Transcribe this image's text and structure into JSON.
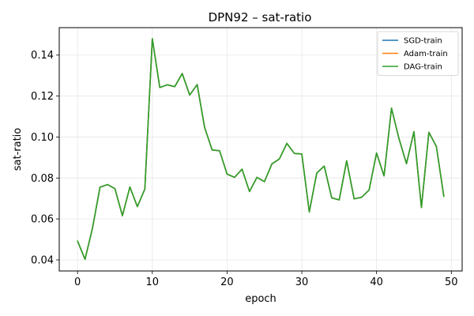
{
  "chart_data": {
    "type": "line",
    "title": "DPN92 – sat-ratio",
    "xlabel": "epoch",
    "ylabel": "sat-ratio",
    "xlim": [
      -2.45,
      51.45
    ],
    "ylim": [
      0.0346,
      0.1534
    ],
    "xticks": [
      0,
      10,
      20,
      30,
      40,
      50
    ],
    "yticks": [
      0.04,
      0.06,
      0.08,
      0.1,
      0.12,
      0.14
    ],
    "xtick_labels": [
      "0",
      "10",
      "20",
      "30",
      "40",
      "50"
    ],
    "ytick_labels": [
      "0.04",
      "0.06",
      "0.08",
      "0.10",
      "0.12",
      "0.14"
    ],
    "grid": true,
    "legend_position": "top-right",
    "x": [
      0,
      1,
      2,
      3,
      4,
      5,
      6,
      7,
      8,
      9,
      10,
      11,
      12,
      13,
      14,
      15,
      16,
      17,
      18,
      19,
      20,
      21,
      22,
      23,
      24,
      25,
      26,
      27,
      28,
      29,
      30,
      31,
      32,
      33,
      34,
      35,
      36,
      37,
      38,
      39,
      40,
      41,
      42,
      43,
      44,
      45,
      46,
      47,
      48,
      49
    ],
    "series": [
      {
        "name": "SGD-train",
        "color": "#1f77b4",
        "values": [
          0.0492,
          0.0403,
          0.0556,
          0.0755,
          0.0768,
          0.0748,
          0.0616,
          0.0756,
          0.066,
          0.0746,
          0.148,
          0.1242,
          0.1255,
          0.1246,
          0.131,
          0.1205,
          0.1256,
          0.1046,
          0.0937,
          0.0933,
          0.0819,
          0.0803,
          0.0843,
          0.0734,
          0.0803,
          0.0782,
          0.0869,
          0.0893,
          0.0969,
          0.092,
          0.0917,
          0.0634,
          0.0824,
          0.0858,
          0.0703,
          0.0693,
          0.0884,
          0.0698,
          0.0706,
          0.0741,
          0.0922,
          0.081,
          0.1141,
          0.0992,
          0.087,
          0.1026,
          0.0656,
          0.1023,
          0.0954,
          0.071
        ]
      },
      {
        "name": "Adam-train",
        "color": "#ff7f0e",
        "values": [
          0.0492,
          0.0403,
          0.0556,
          0.0755,
          0.0768,
          0.0748,
          0.0616,
          0.0756,
          0.066,
          0.0746,
          0.148,
          0.1242,
          0.1255,
          0.1246,
          0.131,
          0.1205,
          0.1256,
          0.1046,
          0.0937,
          0.0933,
          0.0819,
          0.0803,
          0.0843,
          0.0734,
          0.0803,
          0.0782,
          0.0869,
          0.0893,
          0.0969,
          0.092,
          0.0917,
          0.0634,
          0.0824,
          0.0858,
          0.0703,
          0.0693,
          0.0884,
          0.0698,
          0.0706,
          0.0741,
          0.0922,
          0.081,
          0.1141,
          0.0992,
          0.087,
          0.1026,
          0.0656,
          0.1023,
          0.0954,
          0.071
        ]
      },
      {
        "name": "DAG-train",
        "color": "#2ca02c",
        "values": [
          0.0492,
          0.0403,
          0.0556,
          0.0755,
          0.0768,
          0.0748,
          0.0616,
          0.0756,
          0.066,
          0.0746,
          0.148,
          0.1242,
          0.1255,
          0.1246,
          0.131,
          0.1205,
          0.1256,
          0.1046,
          0.0937,
          0.0933,
          0.0819,
          0.0803,
          0.0843,
          0.0734,
          0.0803,
          0.0782,
          0.0869,
          0.0893,
          0.0969,
          0.092,
          0.0917,
          0.0634,
          0.0824,
          0.0858,
          0.0703,
          0.0693,
          0.0884,
          0.0698,
          0.0706,
          0.0741,
          0.0922,
          0.081,
          0.1141,
          0.0992,
          0.087,
          0.1026,
          0.0656,
          0.1023,
          0.0954,
          0.071
        ]
      }
    ]
  }
}
